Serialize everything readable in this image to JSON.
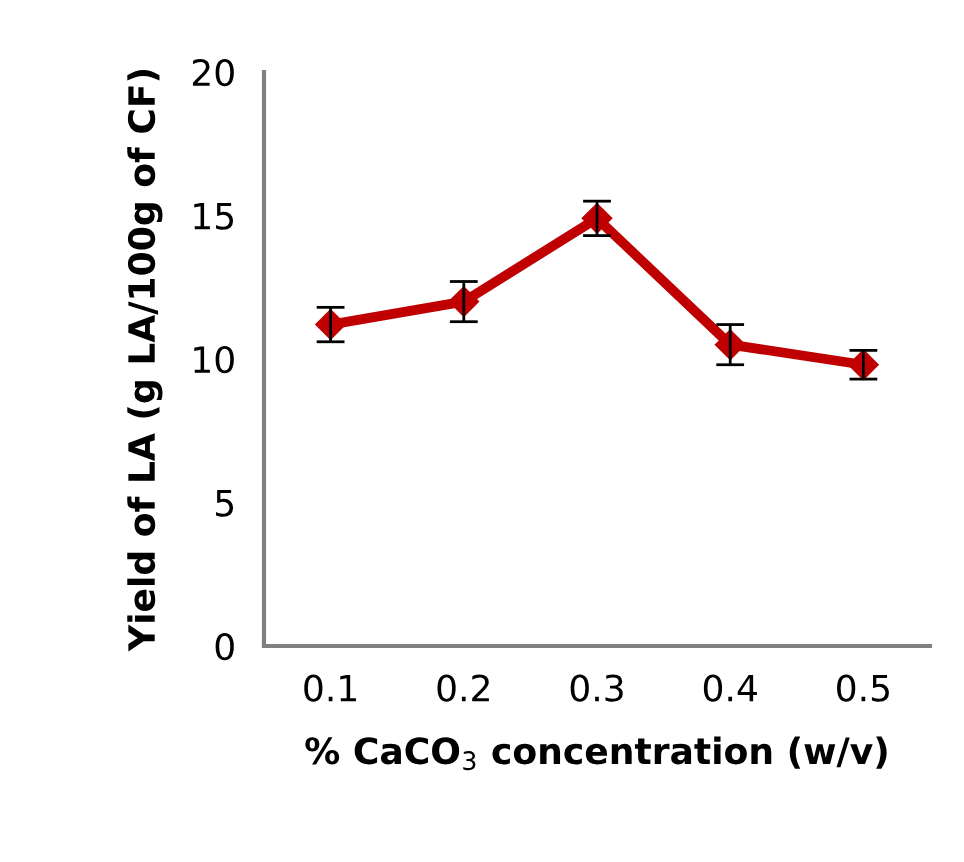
{
  "chart_data": {
    "type": "line",
    "xlabel": "% CaCO$_{3}$ concentration (w/v)",
    "ylabel": "Yield of LA (g LA/100g of CF)",
    "categories": [
      "0.1",
      "0.2",
      "0.3",
      "0.4",
      "0.5"
    ],
    "series": [
      {
        "color": "#c00000",
        "values": [
          11.2,
          12.0,
          14.9,
          10.5,
          9.8
        ],
        "errors": [
          0.6,
          0.7,
          0.6,
          0.7,
          0.5
        ]
      }
    ],
    "ylim": [
      0,
      20
    ],
    "yticks": [
      0,
      5,
      10,
      15,
      20
    ],
    "grid": false,
    "legend": false,
    "marker": "diamond",
    "line_style": "solid"
  }
}
